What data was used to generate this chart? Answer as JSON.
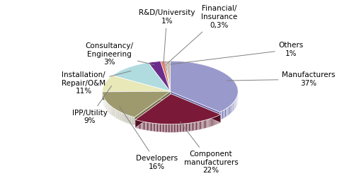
{
  "slices": [
    {
      "label": "Manufacturers\n37%",
      "value": 37,
      "color": "#9999cc",
      "dark_color": "#6666aa",
      "explode": 0.0
    },
    {
      "label": "Component\nmanufacturers\n22%",
      "value": 22,
      "color": "#7b1a38",
      "dark_color": "#550f25",
      "explode": 0.08
    },
    {
      "label": "Developers\n16%",
      "value": 16,
      "color": "#9e9a6e",
      "dark_color": "#72704a",
      "explode": 0.0
    },
    {
      "label": "IPP/Utility\n9%",
      "value": 9,
      "color": "#e8e8b8",
      "dark_color": "#b8b888",
      "explode": 0.0
    },
    {
      "label": "Installation/\nRepair/O&M\n11%",
      "value": 11,
      "color": "#b0dce0",
      "dark_color": "#80acb0",
      "explode": 0.0
    },
    {
      "label": "Consultancy/\nEngineering\n3%",
      "value": 3,
      "color": "#6b2d8b",
      "dark_color": "#4a1a60",
      "explode": 0.0
    },
    {
      "label": "R&D/University\n1%",
      "value": 1,
      "color": "#e08070",
      "dark_color": "#b05040",
      "explode": 0.0
    },
    {
      "label": "Financial/\nInsurance\n0,3%",
      "value": 0.3,
      "color": "#2a2a6e",
      "dark_color": "#18184a",
      "explode": 0.0
    },
    {
      "label": "Others\n1%",
      "value": 1,
      "color": "#c8c0a8",
      "dark_color": "#989078",
      "explode": 0.0
    }
  ],
  "background_color": "#ffffff",
  "label_fontsize": 7.5,
  "figsize": [
    5.0,
    2.49
  ],
  "dpi": 100,
  "start_angle": 90,
  "depth": 0.12,
  "yscale": 0.45
}
